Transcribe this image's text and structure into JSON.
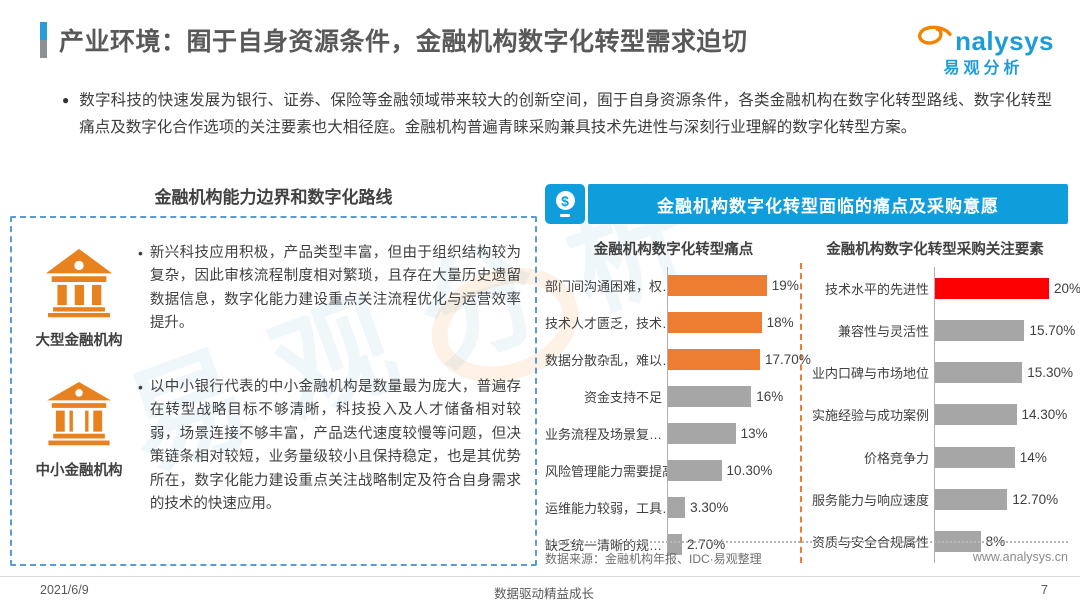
{
  "page": {
    "title": "产业环境：囿于自身资源条件，金融机构数字化转型需求迫切",
    "intro": "数字科技的快速发展为银行、证券、保险等金融领域带来较大的创新空间，囿于自身资源条件，各类金融机构在数字化转型路线、数字化转型痛点及数字化合作选项的关注要素也大相径庭。金融机构普遍青睐采购兼具技术先进性与深刻行业理解的数字化转型方案。"
  },
  "logo": {
    "brand": "nalysys",
    "brand_cn": "易观分析",
    "watermark": "易观分析"
  },
  "left_panel": {
    "title": "金融机构能力边界和数字化路线",
    "items": [
      {
        "label": "大型金融机构",
        "text": "新兴科技应用积极，产品类型丰富，但由于组织结构较为复杂，因此审核流程制度相对繁琐，且存在大量历史遗留数据信息，数字化能力建设重点关注流程优化与运营效率提升。"
      },
      {
        "label": "中小金融机构",
        "text": "以中小银行代表的中小金融机构是数量最为庞大，普遍存在转型战略目标不够清晰，科技投入及人才储备相对较弱，场景连接不够丰富，产品迭代速度较慢等问题，但决策链条相对较短，业务量级较小且保持稳定，也是其优势所在，数字化能力建设重点关注战略制定及符合自身需求的技术的快速应用。"
      }
    ]
  },
  "right_panel": {
    "header": "金融机构数字化转型面临的痛点及采购意愿",
    "source": "数据来源：金融机构年报、IDC·易观整理",
    "website": "www.analysys.cn"
  },
  "chart_data": [
    {
      "type": "bar",
      "orientation": "horizontal",
      "title": "金融机构数字化转型痛点",
      "categories": [
        "部门间沟通困难，权…",
        "技术人才匮乏，技术…",
        "数据分散杂乱，难以…",
        "资金支持不足",
        "业务流程及场景复…",
        "风险管理能力需要提高",
        "运维能力较弱，工具…",
        "缺乏统一清晰的规…"
      ],
      "values": [
        19,
        18,
        17.7,
        16,
        13,
        10.3,
        3.3,
        2.7
      ],
      "labels": [
        "19%",
        "18%",
        "17.70%",
        "16%",
        "13%",
        "10.30%",
        "3.30%",
        "2.70%"
      ],
      "colors": [
        "#ED7D31",
        "#ED7D31",
        "#ED7D31",
        "#A6A6A6",
        "#A6A6A6",
        "#A6A6A6",
        "#A6A6A6",
        "#A6A6A6"
      ],
      "xlim": [
        0,
        20
      ],
      "legend": "none",
      "grid": false
    },
    {
      "type": "bar",
      "orientation": "horizontal",
      "title": "金融机构数字化转型采购关注要素",
      "categories": [
        "技术水平的先进性",
        "兼容性与灵活性",
        "业内口碑与市场地位",
        "实施经验与成功案例",
        "价格竞争力",
        "服务能力与响应速度",
        "资质与安全合规属性"
      ],
      "values": [
        20,
        15.7,
        15.3,
        14.3,
        14,
        12.7,
        8
      ],
      "labels": [
        "20%",
        "15.70%",
        "15.30%",
        "14.30%",
        "14%",
        "12.70%",
        "8%"
      ],
      "colors": [
        "#FE0000",
        "#A6A6A6",
        "#A6A6A6",
        "#A6A6A6",
        "#A6A6A6",
        "#A6A6A6",
        "#A6A6A6"
      ],
      "xlim": [
        0,
        22
      ],
      "legend": "none",
      "grid": false
    }
  ],
  "footer": {
    "date": "2021/6/9",
    "center": "数据驱动精益成长",
    "page": "7"
  }
}
